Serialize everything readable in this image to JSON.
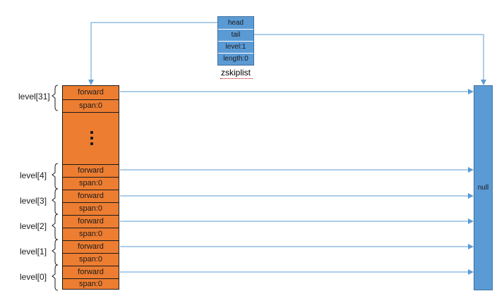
{
  "zskiplist": {
    "fields": [
      "head",
      "tail",
      "level:1",
      "length:0"
    ],
    "name": "zskiplist"
  },
  "header": {
    "top_level": {
      "label": "level[31]",
      "forward": "forward",
      "span": "span:0"
    },
    "levels": [
      {
        "label": "level[4]",
        "forward": "forward",
        "span": "span:0"
      },
      {
        "label": "level[3]",
        "forward": "forward",
        "span": "span:0"
      },
      {
        "label": "level[2]",
        "forward": "forward",
        "span": "span:0"
      },
      {
        "label": "level[1]",
        "forward": "forward",
        "span": "span:0"
      },
      {
        "label": "level[0]",
        "forward": "forward",
        "span": "span:0"
      }
    ]
  },
  "null_node": {
    "label": "null"
  },
  "colors": {
    "header_fill": "#ed7d31",
    "struct_fill": "#5b9bd5",
    "arrow": "#5b9bd5"
  }
}
